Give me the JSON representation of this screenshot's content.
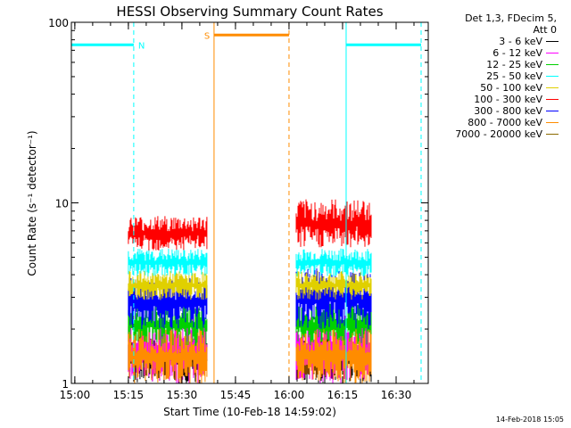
{
  "chart_data": {
    "type": "line",
    "title": "HESSI Observing Summary Count Rates",
    "xlabel": "Start Time (10-Feb-18 14:59:02)",
    "ylabel": "Count Rate (s⁻¹ detector⁻¹)",
    "y_scale": "log",
    "ylim": [
      1,
      100
    ],
    "xlim": [
      "14:59:02",
      "16:39:00"
    ],
    "x_tick_labels": [
      "15:00",
      "15:15",
      "15:30",
      "15:45",
      "16:00",
      "16:15",
      "16:30"
    ],
    "y_tick_labels": [
      "1",
      "10",
      "100"
    ],
    "legend_header": [
      "Det 1,3, FDecim 5,",
      "Att 0"
    ],
    "legend_position": "right",
    "series": [
      {
        "name": "3 - 6 keV",
        "color": "#000000",
        "segments": [
          {
            "start": "15:15",
            "end": "15:37",
            "low": 1,
            "high": 1.9
          },
          {
            "start": "16:02",
            "end": "16:23",
            "low": 1,
            "high": 1.9
          }
        ]
      },
      {
        "name": "6 - 12 keV",
        "color": "#ff00ff",
        "segments": [
          {
            "start": "15:15",
            "end": "15:37",
            "low": 1,
            "high": 2.4
          },
          {
            "start": "16:02",
            "end": "16:23",
            "low": 1,
            "high": 2.4
          }
        ]
      },
      {
        "name": "12 - 25 keV",
        "color": "#00d000",
        "segments": [
          {
            "start": "15:15",
            "end": "15:37",
            "low": 1.6,
            "high": 2.8
          },
          {
            "start": "16:02",
            "end": "16:23",
            "low": 1.6,
            "high": 2.8
          }
        ]
      },
      {
        "name": "25 - 50 keV",
        "color": "#00ffff",
        "segments": [
          {
            "start": "15:15",
            "end": "15:37",
            "low": 3.9,
            "high": 5.6
          },
          {
            "start": "16:02",
            "end": "16:23",
            "low": 3.9,
            "high": 5.6
          }
        ]
      },
      {
        "name": "50 - 100 keV",
        "color": "#e0d000",
        "segments": [
          {
            "start": "15:15",
            "end": "15:37",
            "low": 2.9,
            "high": 4.2
          },
          {
            "start": "16:02",
            "end": "16:23",
            "low": 2.9,
            "high": 4.2
          }
        ]
      },
      {
        "name": "100 - 300 keV",
        "color": "#ff0000",
        "segments": [
          {
            "start": "15:15",
            "end": "15:37",
            "low": 5.4,
            "high": 8.5
          },
          {
            "start": "16:02",
            "end": "16:23",
            "low": 5.6,
            "high": 10.5
          }
        ]
      },
      {
        "name": "300 - 800 keV",
        "color": "#0000ff",
        "segments": [
          {
            "start": "15:15",
            "end": "15:37",
            "low": 2,
            "high": 3.9
          },
          {
            "start": "16:02",
            "end": "16:23",
            "low": 2,
            "high": 4.4
          }
        ]
      },
      {
        "name": "800 - 7000 keV",
        "color": "#ff8c00",
        "segments": [
          {
            "start": "15:15",
            "end": "15:37",
            "low": 1,
            "high": 2
          },
          {
            "start": "16:02",
            "end": "16:23",
            "low": 1,
            "high": 2
          }
        ]
      },
      {
        "name": "7000 - 20000 keV",
        "color": "#8b6a00",
        "segments": []
      }
    ],
    "annotations": [
      {
        "text": "N",
        "color": "#00ffff",
        "bar": {
          "start": "14:59:02",
          "end": "15:16:30",
          "value": 75
        },
        "marker": "15:16:30"
      },
      {
        "text": "S",
        "color": "#ff8c00",
        "bar": {
          "start": "15:39",
          "end": "16:00",
          "value": 85
        },
        "marker": "15:39"
      },
      {
        "text": "",
        "color": "#00ffff",
        "bar": {
          "start": "16:16",
          "end": "16:37",
          "value": 75
        },
        "marker": "16:37"
      }
    ],
    "vertical_lines": [
      {
        "time": "14:59:02",
        "color": "#00ffff",
        "style": "solid"
      },
      {
        "time": "15:16:30",
        "color": "#00ffff",
        "style": "dashed"
      },
      {
        "time": "15:39",
        "color": "#ff8c00",
        "style": "solid"
      },
      {
        "time": "16:00",
        "color": "#ff8c00",
        "style": "dashed"
      },
      {
        "time": "16:16",
        "color": "#00ffff",
        "style": "solid"
      },
      {
        "time": "16:37",
        "color": "#00ffff",
        "style": "dashed"
      }
    ]
  },
  "footer": "14-Feb-2018 15:05"
}
